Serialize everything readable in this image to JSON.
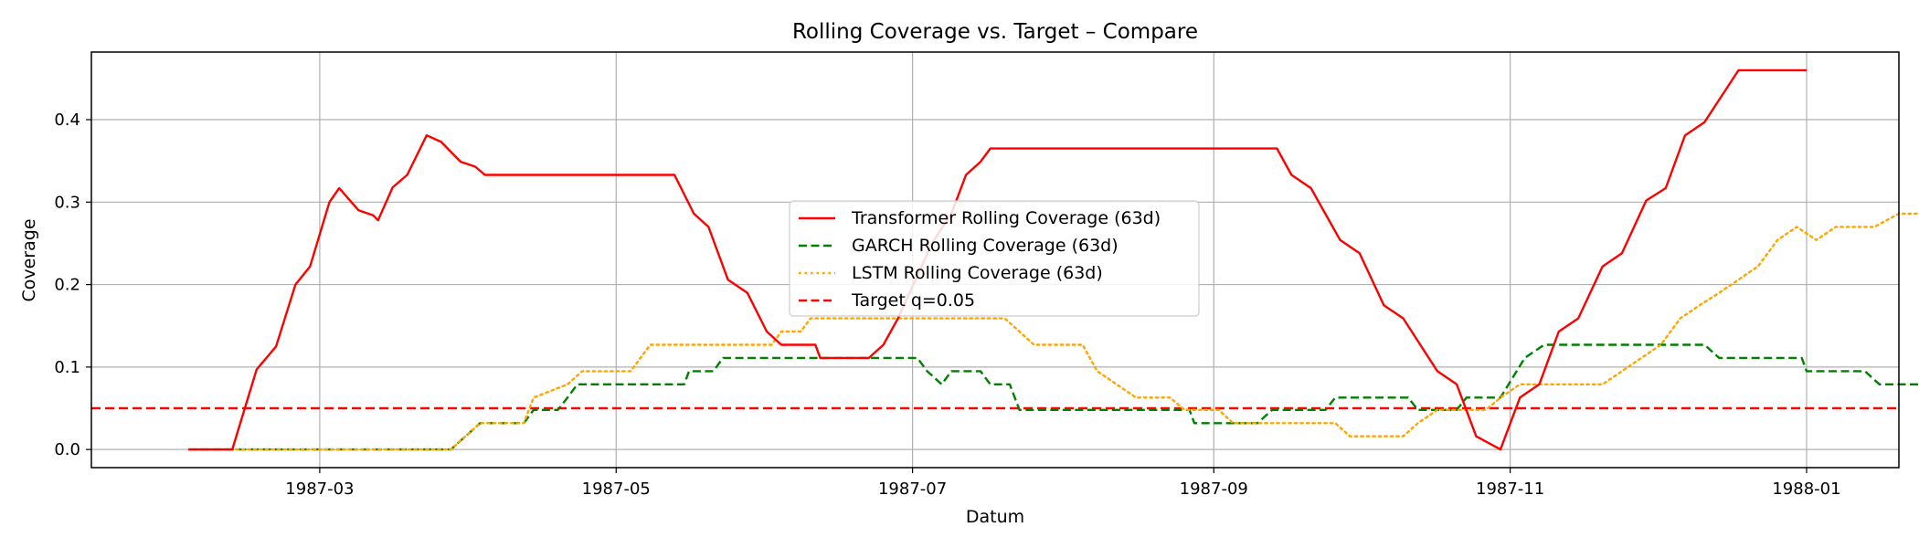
{
  "chart_data": {
    "type": "line",
    "title": "Rolling Coverage vs. Target – Compare",
    "xlabel": "Datum",
    "ylabel": "Coverage",
    "xlim": [
      "1987-01-13",
      "1988-01-20"
    ],
    "ylim": [
      -0.022,
      0.482
    ],
    "grid": true,
    "legend_placement": "center",
    "x_ticks": [
      "1987-03",
      "1987-05",
      "1987-07",
      "1987-09",
      "1987-11",
      "1988-01"
    ],
    "y_ticks": [
      "0.0",
      "0.1",
      "0.2",
      "0.3",
      "0.4"
    ],
    "series": [
      {
        "name": "Transformer Rolling Coverage (63d)",
        "color": "#ff0000",
        "style": "solid",
        "points": [
          [
            "1987-02-02",
            0
          ],
          [
            "1987-02-11",
            0
          ],
          [
            "1987-02-16",
            0.097
          ],
          [
            "1987-02-20",
            0.125
          ],
          [
            "1987-02-24",
            0.2
          ],
          [
            "1987-02-27",
            0.222
          ],
          [
            "1987-03-03",
            0.3
          ],
          [
            "1987-03-05",
            0.317
          ],
          [
            "1987-03-09",
            0.29
          ],
          [
            "1987-03-12",
            0.284
          ],
          [
            "1987-03-13",
            0.278
          ],
          [
            "1987-03-16",
            0.318
          ],
          [
            "1987-03-19",
            0.333
          ],
          [
            "1987-03-23",
            0.381
          ],
          [
            "1987-03-26",
            0.373
          ],
          [
            "1987-03-30",
            0.349
          ],
          [
            "1987-04-02",
            0.343
          ],
          [
            "1987-04-04",
            0.333
          ],
          [
            "1987-05-13",
            0.333
          ],
          [
            "1987-05-17",
            0.286
          ],
          [
            "1987-05-20",
            0.27
          ],
          [
            "1987-05-24",
            0.206
          ],
          [
            "1987-05-28",
            0.19
          ],
          [
            "1987-06-01",
            0.143
          ],
          [
            "1987-06-04",
            0.127
          ],
          [
            "1987-06-11",
            0.127
          ],
          [
            "1987-06-12",
            0.111
          ],
          [
            "1987-06-22",
            0.111
          ],
          [
            "1987-06-25",
            0.127
          ],
          [
            "1987-06-28",
            0.159
          ],
          [
            "1987-07-05",
            0.25
          ],
          [
            "1987-07-09",
            0.286
          ],
          [
            "1987-07-12",
            0.333
          ],
          [
            "1987-07-15",
            0.349
          ],
          [
            "1987-07-17",
            0.365
          ],
          [
            "1987-09-14",
            0.365
          ],
          [
            "1987-09-17",
            0.333
          ],
          [
            "1987-09-21",
            0.317
          ],
          [
            "1987-09-27",
            0.254
          ],
          [
            "1987-10-01",
            0.238
          ],
          [
            "1987-10-06",
            0.175
          ],
          [
            "1987-10-10",
            0.159
          ],
          [
            "1987-10-17",
            0.095
          ],
          [
            "1987-10-21",
            0.079
          ],
          [
            "1987-10-25",
            0.016
          ],
          [
            "1987-10-30",
            0
          ],
          [
            "1987-11-03",
            0.063
          ],
          [
            "1987-11-07",
            0.079
          ],
          [
            "1987-11-11",
            0.143
          ],
          [
            "1987-11-15",
            0.159
          ],
          [
            "1987-11-20",
            0.222
          ],
          [
            "1987-11-24",
            0.238
          ],
          [
            "1987-11-29",
            0.302
          ],
          [
            "1987-12-03",
            0.317
          ],
          [
            "1987-12-07",
            0.381
          ],
          [
            "1987-12-11",
            0.397
          ],
          [
            "1987-12-18",
            0.46
          ],
          [
            "1988-01-01",
            0.46
          ]
        ]
      },
      {
        "name": "GARCH Rolling Coverage (63d)",
        "color": "#008000",
        "style": "dashed",
        "points": [
          [
            "1987-02-02",
            0
          ],
          [
            "1987-03-28",
            0
          ],
          [
            "1987-03-31",
            0.016
          ],
          [
            "1987-04-03",
            0.032
          ],
          [
            "1987-04-12",
            0.032
          ],
          [
            "1987-04-14",
            0.048
          ],
          [
            "1987-04-19",
            0.048
          ],
          [
            "1987-04-21",
            0.063
          ],
          [
            "1987-04-23",
            0.079
          ],
          [
            "1987-05-15",
            0.079
          ],
          [
            "1987-05-16",
            0.095
          ],
          [
            "1987-05-21",
            0.095
          ],
          [
            "1987-05-23",
            0.111
          ],
          [
            "1987-07-02",
            0.111
          ],
          [
            "1987-07-04",
            0.095
          ],
          [
            "1987-07-07",
            0.079
          ],
          [
            "1987-07-09",
            0.095
          ],
          [
            "1987-07-15",
            0.095
          ],
          [
            "1987-07-17",
            0.079
          ],
          [
            "1987-07-21",
            0.079
          ],
          [
            "1987-07-23",
            0.048
          ],
          [
            "1987-08-27",
            0.048
          ],
          [
            "1987-08-28",
            0.032
          ],
          [
            "1987-09-10",
            0.032
          ],
          [
            "1987-09-13",
            0.048
          ],
          [
            "1987-09-24",
            0.048
          ],
          [
            "1987-09-26",
            0.063
          ],
          [
            "1987-10-11",
            0.063
          ],
          [
            "1987-10-13",
            0.048
          ],
          [
            "1987-10-21",
            0.048
          ],
          [
            "1987-10-23",
            0.063
          ],
          [
            "1987-10-30",
            0.063
          ],
          [
            "1987-11-04",
            0.111
          ],
          [
            "1987-11-08",
            0.127
          ],
          [
            "1987-12-11",
            0.127
          ],
          [
            "1987-12-14",
            0.111
          ],
          [
            "1987-12-31",
            0.111
          ],
          [
            "1988-01-01",
            0.095
          ],
          [
            "1988-01-13",
            0.095
          ],
          [
            "1988-01-16",
            0.079
          ],
          [
            "1988-02-01",
            0.079
          ]
        ]
      },
      {
        "name": "LSTM Rolling Coverage (63d)",
        "color": "#ffa500",
        "style": "dotted",
        "points": [
          [
            "1987-02-02",
            0
          ],
          [
            "1987-03-28",
            0
          ],
          [
            "1987-03-31",
            0.016
          ],
          [
            "1987-04-03",
            0.032
          ],
          [
            "1987-04-12",
            0.032
          ],
          [
            "1987-04-14",
            0.063
          ],
          [
            "1987-04-21",
            0.079
          ],
          [
            "1987-04-24",
            0.095
          ],
          [
            "1987-05-04",
            0.095
          ],
          [
            "1987-05-08",
            0.127
          ],
          [
            "1987-06-02",
            0.127
          ],
          [
            "1987-06-04",
            0.143
          ],
          [
            "1987-06-08",
            0.143
          ],
          [
            "1987-06-10",
            0.159
          ],
          [
            "1987-07-20",
            0.159
          ],
          [
            "1987-07-23",
            0.143
          ],
          [
            "1987-07-26",
            0.127
          ],
          [
            "1987-08-05",
            0.127
          ],
          [
            "1987-08-08",
            0.095
          ],
          [
            "1987-08-12",
            0.079
          ],
          [
            "1987-08-16",
            0.063
          ],
          [
            "1987-08-23",
            0.063
          ],
          [
            "1987-08-26",
            0.048
          ],
          [
            "1987-09-02",
            0.048
          ],
          [
            "1987-09-05",
            0.032
          ],
          [
            "1987-09-26",
            0.032
          ],
          [
            "1987-09-29",
            0.016
          ],
          [
            "1987-10-10",
            0.016
          ],
          [
            "1987-10-13",
            0.032
          ],
          [
            "1987-10-17",
            0.048
          ],
          [
            "1987-10-27",
            0.048
          ],
          [
            "1987-10-30",
            0.063
          ],
          [
            "1987-11-03",
            0.079
          ],
          [
            "1987-11-20",
            0.079
          ],
          [
            "1987-11-24",
            0.095
          ],
          [
            "1987-11-28",
            0.111
          ],
          [
            "1987-12-02",
            0.127
          ],
          [
            "1987-12-06",
            0.159
          ],
          [
            "1987-12-10",
            0.175
          ],
          [
            "1987-12-14",
            0.19
          ],
          [
            "1987-12-18",
            0.206
          ],
          [
            "1987-12-22",
            0.222
          ],
          [
            "1987-12-26",
            0.254
          ],
          [
            "1987-12-30",
            0.27
          ],
          [
            "1988-01-03",
            0.254
          ],
          [
            "1988-01-07",
            0.27
          ],
          [
            "1988-01-15",
            0.27
          ],
          [
            "1988-01-20",
            0.286
          ],
          [
            "1988-01-25",
            0.286
          ],
          [
            "1988-01-29",
            0.302
          ],
          [
            "1988-02-01",
            0.302
          ]
        ]
      },
      {
        "name": "Target q=0.05",
        "color": "#ff0000",
        "style": "dashed",
        "constant": 0.05
      }
    ]
  }
}
